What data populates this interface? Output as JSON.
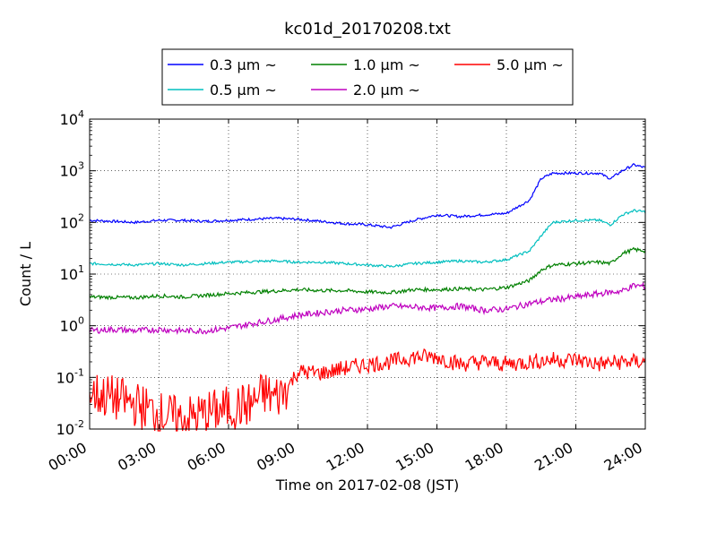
{
  "chart_data": {
    "type": "line",
    "title": "kc01d_20170208.txt",
    "xlabel": "Time on 2017-02-08 (JST)",
    "ylabel": "Count / L",
    "x_unit": "hours",
    "xlim": [
      0,
      24
    ],
    "x_ticks": [
      0,
      3,
      6,
      9,
      12,
      15,
      18,
      21,
      24
    ],
    "x_tick_labels": [
      "00:00",
      "03:00",
      "06:00",
      "09:00",
      "12:00",
      "15:00",
      "18:00",
      "21:00",
      "24:00"
    ],
    "yscale": "log",
    "ylim": [
      0.01,
      10000
    ],
    "y_ticks": [
      0.01,
      0.1,
      1,
      10,
      100,
      1000,
      10000
    ],
    "y_tick_labels": [
      {
        "base": "10",
        "exp": "-2"
      },
      {
        "base": "10",
        "exp": "-1"
      },
      {
        "base": "10",
        "exp": "0"
      },
      {
        "base": "10",
        "exp": "1"
      },
      {
        "base": "10",
        "exp": "2"
      },
      {
        "base": "10",
        "exp": "3"
      },
      {
        "base": "10",
        "exp": "4"
      }
    ],
    "grid": true,
    "legend_position": "top",
    "series": [
      {
        "name": "0.3 μm ~",
        "color": "#0000ff",
        "x": [
          0,
          1,
          2,
          3,
          4,
          5,
          6,
          7,
          8,
          9,
          10,
          11,
          12,
          12.5,
          13,
          14,
          15,
          16,
          17,
          18,
          19,
          19.5,
          20,
          21,
          22,
          22.5,
          23,
          23.5,
          24
        ],
        "y": [
          110,
          105,
          100,
          110,
          110,
          105,
          110,
          115,
          120,
          115,
          105,
          95,
          90,
          85,
          80,
          110,
          140,
          130,
          140,
          150,
          270,
          700,
          900,
          900,
          900,
          700,
          1000,
          1300,
          1150
        ]
      },
      {
        "name": "0.5 μm ~",
        "color": "#00bfbf",
        "x": [
          0,
          2,
          3,
          4,
          6,
          8,
          9,
          10,
          11,
          12,
          13,
          14,
          15,
          16,
          17,
          18,
          19,
          19.5,
          20,
          21,
          22,
          22.5,
          23,
          23.5,
          24
        ],
        "y": [
          16,
          15,
          16,
          15,
          17,
          18,
          17,
          17,
          16,
          15,
          14,
          16,
          17,
          18,
          17,
          19,
          28,
          55,
          100,
          110,
          110,
          90,
          140,
          170,
          160
        ]
      },
      {
        "name": "1.0 μm ~",
        "color": "#008000",
        "x": [
          0,
          2,
          3,
          4,
          6,
          8,
          9,
          10,
          11,
          12,
          13,
          14,
          15,
          16,
          17,
          18,
          19,
          19.5,
          20,
          21,
          22,
          22.5,
          23,
          23.5,
          24
        ],
        "y": [
          3.6,
          3.5,
          3.8,
          3.6,
          4.2,
          4.7,
          5.0,
          4.8,
          4.8,
          4.5,
          4.4,
          5.0,
          5.0,
          5.2,
          5.0,
          5.5,
          7.5,
          12,
          15,
          16,
          17,
          16,
          25,
          30,
          28
        ]
      },
      {
        "name": "2.0 μm ~",
        "color": "#bf00bf",
        "x": [
          0,
          1,
          2,
          3,
          4,
          5,
          6,
          7,
          8,
          9,
          10,
          11,
          12,
          13,
          14,
          15,
          16,
          17,
          18,
          19,
          20,
          21,
          22,
          23,
          23.5,
          24
        ],
        "y": [
          0.8,
          0.85,
          0.8,
          0.85,
          0.8,
          0.8,
          0.9,
          1.1,
          1.3,
          1.6,
          1.8,
          2.0,
          2.1,
          2.4,
          2.3,
          2.2,
          2.4,
          2.0,
          2.1,
          2.7,
          3.2,
          3.6,
          4.2,
          4.7,
          6.0,
          5.8
        ]
      },
      {
        "name": "5.0 μm ~",
        "color": "#ff0000",
        "x": [
          0,
          1,
          2,
          3,
          4,
          5,
          6,
          7,
          7.5,
          8,
          8.5,
          9,
          10,
          11,
          12,
          13,
          14,
          15,
          16,
          17,
          18,
          19,
          20,
          21,
          22,
          23,
          24
        ],
        "y": [
          0.05,
          0.04,
          0.03,
          0.02,
          0.015,
          0.02,
          0.025,
          0.03,
          0.05,
          0.04,
          0.06,
          0.13,
          0.12,
          0.15,
          0.18,
          0.2,
          0.25,
          0.25,
          0.18,
          0.2,
          0.18,
          0.2,
          0.22,
          0.22,
          0.18,
          0.2,
          0.2
        ]
      }
    ]
  }
}
